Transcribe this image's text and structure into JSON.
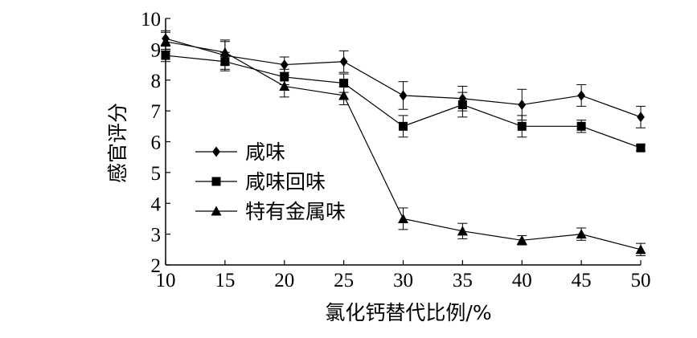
{
  "chart_data": {
    "type": "line",
    "xlabel": "氯化钙替代比例/%",
    "ylabel": "感官评分",
    "x": [
      10,
      15,
      20,
      25,
      30,
      35,
      40,
      45,
      50
    ],
    "xlim": [
      10,
      50
    ],
    "ylim": [
      2,
      10
    ],
    "xticks": [
      "10",
      "15",
      "20",
      "25",
      "30",
      "35",
      "40",
      "45",
      "50"
    ],
    "yticks": [
      "2",
      "3",
      "4",
      "5",
      "6",
      "7",
      "8",
      "9",
      "10"
    ],
    "grid": false,
    "legend_position": "left-middle",
    "color": "#000000",
    "series": [
      {
        "name": "咸味",
        "marker": "diamond",
        "values": [
          9.35,
          8.8,
          8.5,
          8.6,
          7.5,
          7.4,
          7.2,
          7.5,
          6.8
        ],
        "errors": [
          0.25,
          0.45,
          0.25,
          0.35,
          0.45,
          0.4,
          0.5,
          0.35,
          0.35
        ]
      },
      {
        "name": "咸味回味",
        "marker": "square",
        "values": [
          8.8,
          8.6,
          8.1,
          7.9,
          6.5,
          7.2,
          6.5,
          6.5,
          5.8
        ],
        "errors": [
          0.2,
          0.3,
          0.25,
          0.3,
          0.35,
          0.4,
          0.35,
          0.2,
          0.1
        ]
      },
      {
        "name": "特有金属味",
        "marker": "triangle",
        "values": [
          9.25,
          8.9,
          7.8,
          7.5,
          3.5,
          3.1,
          2.8,
          3.0,
          2.5
        ],
        "errors": [
          0.3,
          0.4,
          0.35,
          0.3,
          0.35,
          0.25,
          0.15,
          0.2,
          0.2
        ]
      }
    ]
  }
}
